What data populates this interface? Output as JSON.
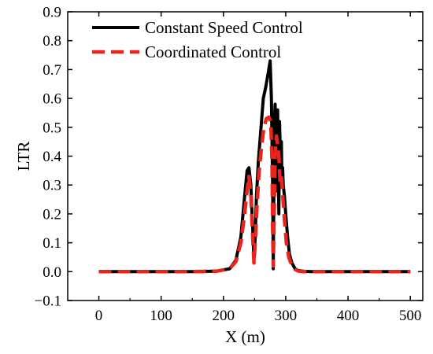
{
  "chart_data": {
    "type": "line",
    "xlabel": "X (m)",
    "ylabel": "LTR",
    "xlim": [
      -50,
      520
    ],
    "ylim": [
      -0.1,
      0.9
    ],
    "xticks": [
      0,
      100,
      200,
      300,
      400,
      500
    ],
    "xtick_labels": [
      "0",
      "100",
      "200",
      "300",
      "400",
      "500"
    ],
    "yticks": [
      -0.1,
      0.0,
      0.1,
      0.2,
      0.3,
      0.4,
      0.5,
      0.6,
      0.7,
      0.8,
      0.9
    ],
    "ytick_labels": [
      "−0.1",
      "0.0",
      "0.1",
      "0.2",
      "0.3",
      "0.4",
      "0.5",
      "0.6",
      "0.7",
      "0.8",
      "0.9"
    ],
    "grid": false,
    "legend_position": "top-left",
    "series": [
      {
        "name": "Constant Speed Control",
        "color": "#000000",
        "style": "solid",
        "x": [
          0,
          150,
          190,
          210,
          220,
          228,
          234,
          238,
          241,
          244,
          247,
          249,
          251,
          253,
          256,
          260,
          264,
          268,
          272,
          275,
          277,
          279,
          280,
          281,
          282,
          283,
          284,
          285,
          286,
          287,
          288,
          289,
          290,
          291,
          292,
          293,
          294,
          295,
          296,
          298,
          300,
          303,
          306,
          310,
          315,
          320,
          330,
          340,
          400,
          500
        ],
        "y": [
          0,
          0,
          0.002,
          0.01,
          0.04,
          0.12,
          0.26,
          0.35,
          0.36,
          0.3,
          0.15,
          0.04,
          0.12,
          0.26,
          0.38,
          0.49,
          0.6,
          0.64,
          0.69,
          0.73,
          0.6,
          0.3,
          0.01,
          0.3,
          0.52,
          0.58,
          0.4,
          0.28,
          0.52,
          0.56,
          0.35,
          0.2,
          0.52,
          0.44,
          0.31,
          0.45,
          0.3,
          0.36,
          0.3,
          0.26,
          0.2,
          0.12,
          0.06,
          0.03,
          0.01,
          0.004,
          0.001,
          0,
          0,
          0
        ]
      },
      {
        "name": "Coordinated Control",
        "color": "#e8241c",
        "style": "dashed",
        "x": [
          0,
          150,
          190,
          210,
          220,
          228,
          234,
          238,
          241,
          244,
          247,
          249,
          251,
          254,
          257,
          261,
          265,
          269,
          273,
          276,
          278,
          279,
          280,
          281,
          283,
          285,
          287,
          289,
          291,
          293,
          295,
          298,
          301,
          305,
          310,
          315,
          320,
          330,
          400,
          500
        ],
        "y": [
          0,
          0,
          0.002,
          0.01,
          0.035,
          0.1,
          0.2,
          0.28,
          0.33,
          0.27,
          0.12,
          0.03,
          0.1,
          0.23,
          0.34,
          0.43,
          0.5,
          0.53,
          0.535,
          0.52,
          0.38,
          0.15,
          0.02,
          0.15,
          0.4,
          0.47,
          0.44,
          0.4,
          0.31,
          0.33,
          0.27,
          0.18,
          0.1,
          0.05,
          0.02,
          0.008,
          0.002,
          0,
          0,
          0
        ]
      }
    ]
  }
}
